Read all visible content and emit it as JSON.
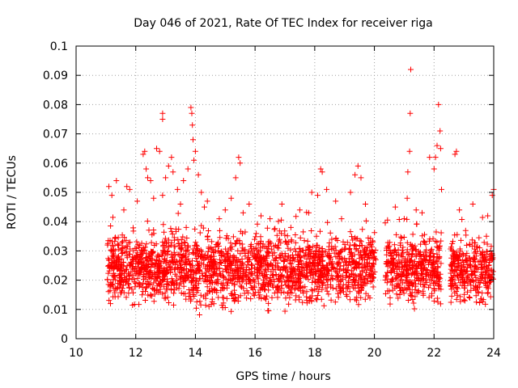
{
  "chart_data": {
    "type": "scatter",
    "title": "Day 046 of 2021, Rate Of TEC Index for receiver riga",
    "xlabel": "GPS time / hours",
    "ylabel": "ROTI / TECUs",
    "xlim": [
      10,
      24
    ],
    "ylim": [
      0,
      0.1
    ],
    "x_ticks": [
      10,
      12,
      14,
      16,
      18,
      20,
      22,
      24
    ],
    "x_tick_labels": [
      "10",
      "12",
      "14",
      "16",
      "18",
      "20",
      "22",
      "24"
    ],
    "y_ticks": [
      0,
      0.01,
      0.02,
      0.03,
      0.04,
      0.05,
      0.06,
      0.07,
      0.08,
      0.09,
      0.1
    ],
    "y_tick_labels": [
      "0",
      "0.01",
      "0.02",
      "0.03",
      "0.04",
      "0.05",
      "0.06",
      "0.07",
      "0.08",
      "0.09",
      "0.1"
    ],
    "grid": true,
    "marker": "+",
    "color": "#ff0000",
    "series": [
      {
        "name": "ROTI",
        "segments": [
          {
            "x_start": 11.05,
            "x_end": 20.05,
            "band_low": 0.009,
            "band_high": 0.036
          },
          {
            "x_start": 20.35,
            "x_end": 22.25,
            "band_low": 0.01,
            "band_high": 0.036
          },
          {
            "x_start": 22.55,
            "x_end": 24.0,
            "band_low": 0.01,
            "band_high": 0.034
          }
        ],
        "points": [
          [
            11.1,
            0.052
          ],
          [
            11.2,
            0.049
          ],
          [
            11.35,
            0.054
          ],
          [
            11.6,
            0.044
          ],
          [
            11.7,
            0.052
          ],
          [
            11.8,
            0.051
          ],
          [
            12.05,
            0.047
          ],
          [
            12.25,
            0.063
          ],
          [
            12.3,
            0.064
          ],
          [
            12.35,
            0.058
          ],
          [
            12.4,
            0.055
          ],
          [
            12.5,
            0.054
          ],
          [
            12.6,
            0.048
          ],
          [
            12.7,
            0.065
          ],
          [
            12.8,
            0.064
          ],
          [
            12.9,
            0.049
          ],
          [
            12.9,
            0.077
          ],
          [
            12.9,
            0.075
          ],
          [
            13.0,
            0.055
          ],
          [
            13.1,
            0.059
          ],
          [
            13.2,
            0.062
          ],
          [
            13.25,
            0.057
          ],
          [
            13.4,
            0.051
          ],
          [
            13.5,
            0.046
          ],
          [
            13.6,
            0.054
          ],
          [
            13.75,
            0.058
          ],
          [
            13.85,
            0.079
          ],
          [
            13.88,
            0.077
          ],
          [
            13.9,
            0.073
          ],
          [
            13.92,
            0.068
          ],
          [
            13.95,
            0.061
          ],
          [
            14.0,
            0.064
          ],
          [
            14.1,
            0.056
          ],
          [
            14.2,
            0.05
          ],
          [
            14.3,
            0.045
          ],
          [
            14.4,
            0.047
          ],
          [
            14.8,
            0.041
          ],
          [
            15.0,
            0.044
          ],
          [
            15.2,
            0.048
          ],
          [
            15.35,
            0.055
          ],
          [
            15.45,
            0.062
          ],
          [
            15.5,
            0.06
          ],
          [
            15.6,
            0.043
          ],
          [
            15.8,
            0.046
          ],
          [
            16.2,
            0.042
          ],
          [
            16.5,
            0.041
          ],
          [
            16.9,
            0.046
          ],
          [
            17.2,
            0.038
          ],
          [
            17.5,
            0.044
          ],
          [
            17.8,
            0.043
          ],
          [
            17.9,
            0.05
          ],
          [
            18.1,
            0.049
          ],
          [
            18.2,
            0.058
          ],
          [
            18.25,
            0.057
          ],
          [
            18.4,
            0.051
          ],
          [
            18.7,
            0.047
          ],
          [
            18.9,
            0.041
          ],
          [
            19.2,
            0.05
          ],
          [
            19.35,
            0.056
          ],
          [
            19.45,
            0.059
          ],
          [
            19.55,
            0.055
          ],
          [
            19.7,
            0.046
          ],
          [
            20.7,
            0.045
          ],
          [
            21.0,
            0.041
          ],
          [
            21.1,
            0.048
          ],
          [
            21.12,
            0.057
          ],
          [
            21.18,
            0.064
          ],
          [
            21.2,
            0.077
          ],
          [
            21.22,
            0.092
          ],
          [
            21.4,
            0.044
          ],
          [
            21.6,
            0.043
          ],
          [
            21.85,
            0.062
          ],
          [
            22.0,
            0.058
          ],
          [
            22.05,
            0.062
          ],
          [
            22.1,
            0.066
          ],
          [
            22.15,
            0.08
          ],
          [
            22.2,
            0.071
          ],
          [
            22.22,
            0.065
          ],
          [
            22.25,
            0.051
          ],
          [
            22.7,
            0.063
          ],
          [
            22.75,
            0.064
          ],
          [
            22.85,
            0.044
          ],
          [
            23.3,
            0.046
          ],
          [
            23.8,
            0.042
          ],
          [
            23.95,
            0.049
          ],
          [
            24.0,
            0.051
          ]
        ]
      }
    ]
  }
}
